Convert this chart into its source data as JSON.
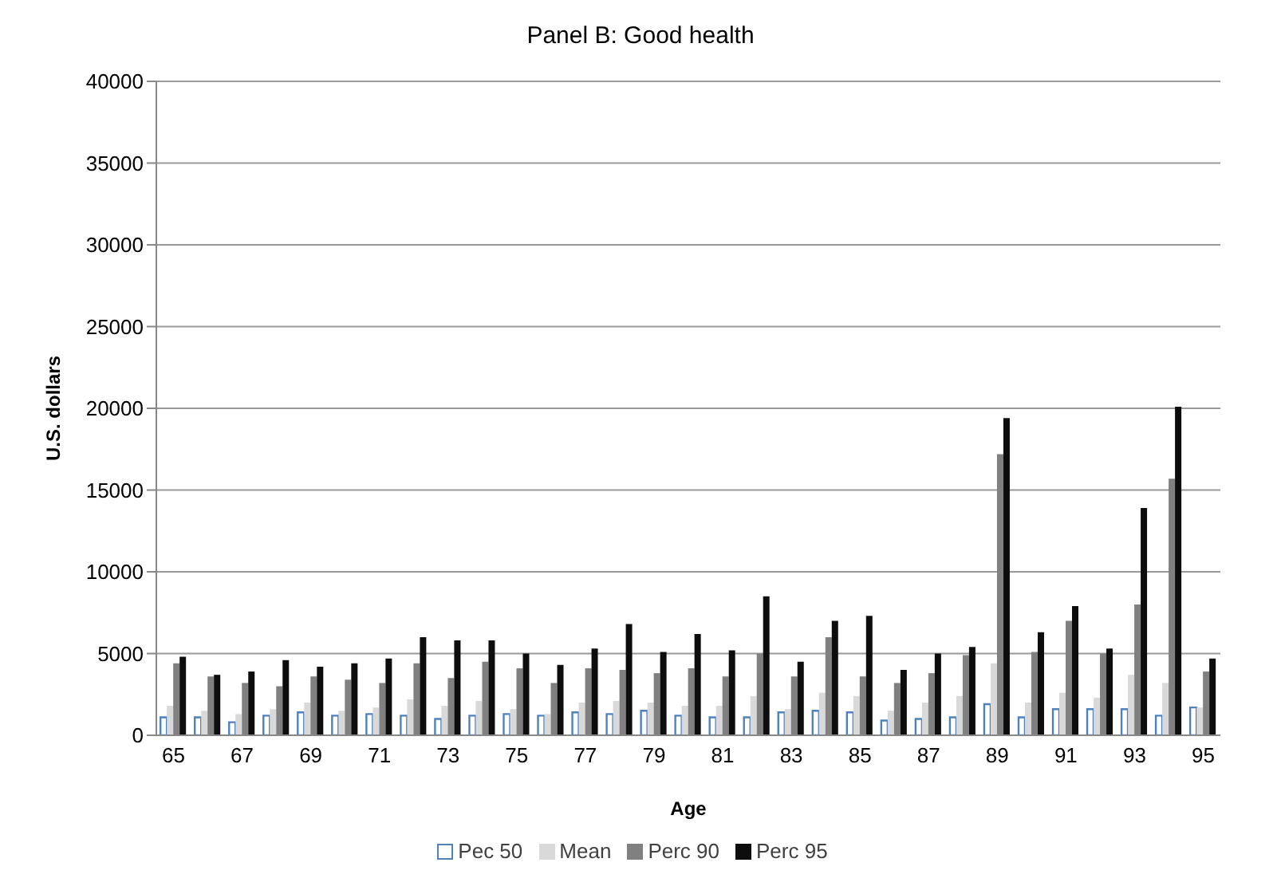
{
  "chart_data": {
    "type": "bar",
    "title": "Panel B: Good health",
    "xlabel": "Age",
    "ylabel": "U.S. dollars",
    "categories": [
      "65",
      null,
      "67",
      null,
      "69",
      null,
      "71",
      null,
      "73",
      null,
      "75",
      null,
      "77",
      null,
      "79",
      null,
      "81",
      null,
      "83",
      null,
      "85",
      null,
      "87",
      null,
      "89",
      null,
      "91",
      null,
      "93",
      null,
      "95"
    ],
    "series": [
      {
        "name": "Pec 50",
        "color": "#4f81bd",
        "values": [
          1100,
          1100,
          800,
          1200,
          1400,
          1200,
          1300,
          1200,
          1000,
          1200,
          1300,
          1200,
          1400,
          1300,
          1500,
          1200,
          1100,
          1100,
          1400,
          1500,
          1400,
          900,
          1000,
          1100,
          1900,
          1100,
          1600,
          1600,
          1600,
          1200,
          1700
        ]
      },
      {
        "name": "Mean",
        "color": "#d9d9d9",
        "values": [
          1800,
          1500,
          1300,
          1600,
          2000,
          1500,
          1700,
          2200,
          1800,
          2100,
          1600,
          1300,
          2000,
          2100,
          2000,
          1800,
          1800,
          2400,
          1600,
          2600,
          2400,
          1500,
          2000,
          2400,
          4400,
          2000,
          2600,
          2300,
          3700,
          3200,
          1700
        ]
      },
      {
        "name": "Perc 90",
        "color": "#808080",
        "values": [
          4400,
          3600,
          3200,
          3000,
          3600,
          3400,
          3200,
          4400,
          3500,
          4500,
          4100,
          3200,
          4100,
          4000,
          3800,
          4100,
          3600,
          5000,
          3600,
          6000,
          3600,
          3200,
          3800,
          4900,
          17200,
          5100,
          7000,
          5000,
          8000,
          15700,
          3900
        ]
      },
      {
        "name": "Perc 95",
        "color": "#0d0d0d",
        "values": [
          4800,
          3700,
          3900,
          4600,
          4200,
          4400,
          4700,
          6000,
          5800,
          5800,
          5000,
          4300,
          5300,
          6800,
          5100,
          6200,
          5200,
          8500,
          4500,
          7000,
          7300,
          4000,
          5000,
          5400,
          19400,
          6300,
          7900,
          5300,
          13900,
          20100,
          4700
        ]
      }
    ],
    "ylim": [
      0,
      40000
    ],
    "yticks": [
      0,
      5000,
      10000,
      15000,
      20000,
      25000,
      30000,
      35000,
      40000
    ],
    "grid": "y",
    "legend": "bottom"
  }
}
